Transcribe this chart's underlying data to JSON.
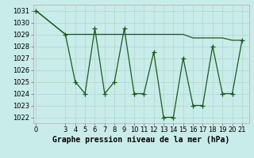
{
  "xlabel": "Graphe pression niveau de la mer (hPa)",
  "background_color": "#c8ece9",
  "grid_color_major": "#b8d8d0",
  "grid_color_minor": "#d0e8e4",
  "line_color": "#1a5c1a",
  "x_zigzag": [
    0,
    3,
    4,
    5,
    6,
    7,
    8,
    9,
    10,
    11,
    12,
    13,
    14,
    15,
    16,
    17,
    18,
    19,
    20,
    21
  ],
  "y_zigzag": [
    1031,
    1029,
    1025,
    1024,
    1029.5,
    1024,
    1025,
    1029.5,
    1024,
    1024,
    1027.5,
    1022,
    1022,
    1027,
    1023,
    1023,
    1028,
    1024,
    1024,
    1028.5
  ],
  "x_trend": [
    0,
    3,
    4,
    5,
    6,
    7,
    8,
    9,
    10,
    11,
    12,
    13,
    14,
    15,
    16,
    17,
    18,
    19,
    20,
    21
  ],
  "y_trend": [
    1031,
    1029,
    1029,
    1029,
    1029,
    1029,
    1029,
    1029,
    1029,
    1029,
    1029,
    1029,
    1029,
    1029,
    1028.7,
    1028.7,
    1028.7,
    1028.7,
    1028.5,
    1028.5
  ],
  "ylim": [
    1021.5,
    1031.5
  ],
  "yticks": [
    1022,
    1023,
    1024,
    1025,
    1026,
    1027,
    1028,
    1029,
    1030,
    1031
  ],
  "xticks": [
    0,
    3,
    4,
    5,
    6,
    7,
    8,
    9,
    10,
    11,
    12,
    13,
    14,
    15,
    16,
    17,
    18,
    19,
    20,
    21
  ],
  "xlim": [
    -0.3,
    21.7
  ],
  "label_fontsize": 7,
  "tick_fontsize": 6
}
